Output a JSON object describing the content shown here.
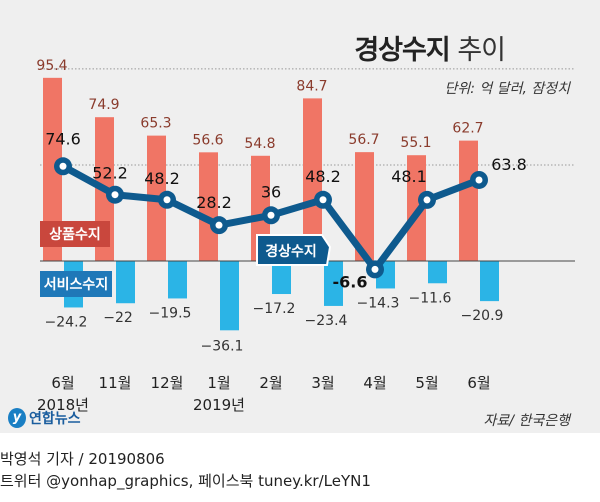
{
  "title_bold": "경상수지",
  "title_light": "추이",
  "unit": "단위: 억 달러, 잠정치",
  "source": "자료/ 한국은행",
  "logo_text": "연합뉴스",
  "credit_line1": "박영석 기자 /  20190806",
  "credit_line2": "트위터 @yonhap_graphics, 페이스북 tuney.kr/LeYN1",
  "colors": {
    "goods": "#f07565",
    "services": "#2bb4e6",
    "current": "#0e5a8e",
    "goods_label": "#c9473d",
    "services_label": "#1f78b8"
  },
  "chart_data": {
    "type": "bar+line",
    "title": "경상수지 추이",
    "categories": [
      "6월",
      "11월",
      "12월",
      "1월",
      "2월",
      "3월",
      "4월",
      "5월",
      "6월"
    ],
    "year_labels": [
      "2018년",
      "",
      "",
      "2019년",
      "",
      "",
      "",
      "",
      ""
    ],
    "series": [
      {
        "name": "상품수지",
        "type": "bar",
        "values": [
          95.4,
          74.9,
          65.3,
          56.6,
          54.8,
          84.7,
          56.7,
          55.1,
          62.7
        ],
        "labels": [
          "95.4",
          "74.9",
          "65.3",
          "56.6",
          "54.8",
          "84.7",
          "56.7",
          "55.1",
          "62.7"
        ]
      },
      {
        "name": "서비스수지",
        "type": "bar",
        "values": [
          -24.2,
          -22,
          -19.5,
          -36.1,
          -17.2,
          -23.4,
          -14.3,
          -11.6,
          -20.9
        ],
        "labels": [
          "−24.2",
          "−22",
          "−19.5",
          "−36.1",
          "−17.2",
          "−23.4",
          "−14.3",
          "−11.6",
          "−20.9"
        ]
      },
      {
        "name": "경상수지",
        "type": "line",
        "values": [
          74.6,
          52.2,
          48.2,
          28.2,
          36,
          48.2,
          -6.6,
          48.1,
          63.8
        ],
        "labels": [
          "74.6",
          "52.2",
          "48.2",
          "28.2",
          "36",
          "48.2",
          "-6.6",
          "48.1",
          "63.8"
        ]
      }
    ],
    "unit": "억 달러"
  }
}
